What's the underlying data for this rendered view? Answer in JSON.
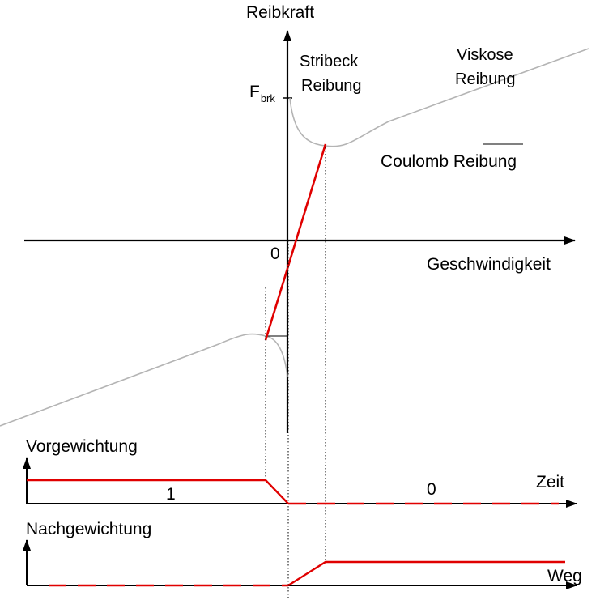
{
  "labels": {
    "y_axis": "Reibkraft",
    "x_axis": "Geschwindigkeit",
    "origin": "0",
    "f_main": "F",
    "f_sub": "brk",
    "stribeck_line1": "Stribeck",
    "stribeck_line2": "Reibung",
    "viscous_line1": "Viskose",
    "viscous_line2": "Reibung",
    "coulomb": "Coulomb Reibung",
    "pre_weight": "Vorgewichtung",
    "post_weight": "Nachgewichtung",
    "time_axis": "Zeit",
    "path_axis": "Weg",
    "pre_value_left": "1",
    "pre_value_right": "0"
  },
  "colors": {
    "axis": "#000000",
    "friction_curve": "#b4b4b4",
    "linear_region": "#e00000",
    "guide": "#000000"
  }
}
